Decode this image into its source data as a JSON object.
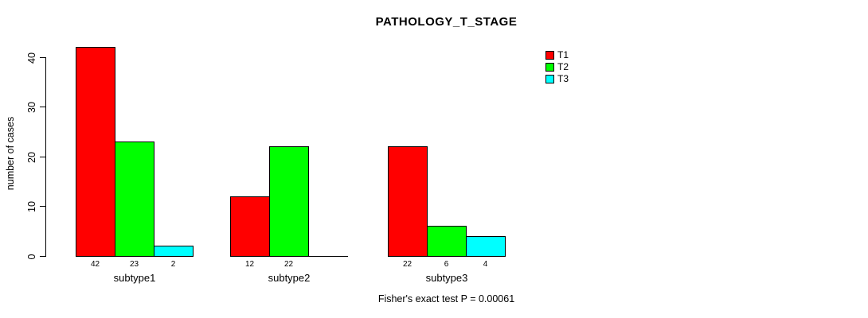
{
  "chart_data": {
    "type": "bar",
    "title": "PATHOLOGY_T_STAGE",
    "xlabel": "",
    "ylabel": "number of cases",
    "annotation": "Fisher's exact test P = 0.00061",
    "categories": [
      "subtype1",
      "subtype2",
      "subtype3"
    ],
    "series": [
      {
        "name": "T1",
        "color": "#FF0000",
        "values": [
          42,
          12,
          22
        ]
      },
      {
        "name": "T2",
        "color": "#00FF00",
        "values": [
          23,
          22,
          6
        ]
      },
      {
        "name": "T3",
        "color": "#00FFFF",
        "values": [
          2,
          0,
          4
        ]
      }
    ],
    "bar_value_labels": [
      [
        "42",
        "23",
        "2"
      ],
      [
        "12",
        "22",
        ""
      ],
      [
        "22",
        "6",
        "4"
      ]
    ],
    "ylim": [
      0,
      40
    ],
    "yticks": [
      0,
      10,
      20,
      30,
      40
    ],
    "grid": false,
    "legend_position": "top-right",
    "background": "#FFFFFF"
  }
}
